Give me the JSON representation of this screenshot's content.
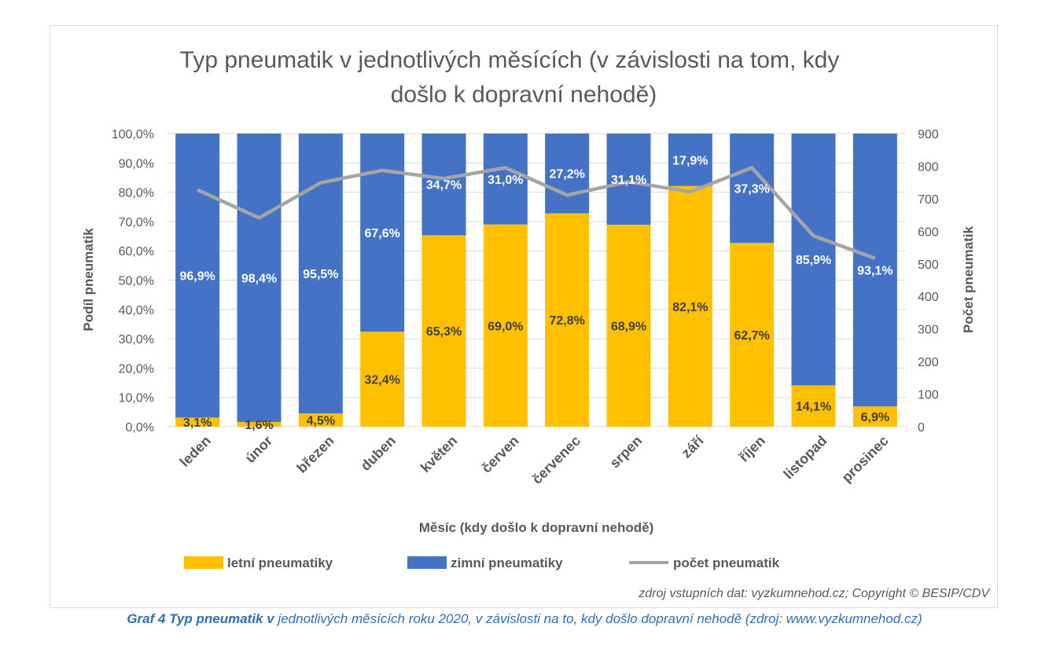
{
  "chart_data": {
    "type": "bar",
    "stacked": true,
    "title_line1": "Typ pneumatik v jednotlivých měsících (v závislosti na tom, kdy",
    "title_line2": "došlo k dopravní nehodě)",
    "xlabel": "Měsíc (kdy došlo k dopravní nehodě)",
    "ylabel": "Podíl pneumatik",
    "y2label": "Počet pneumatik",
    "ylim": [
      0,
      100
    ],
    "y2lim": [
      0,
      900
    ],
    "y_ticks": [
      "0,0%",
      "10,0%",
      "20,0%",
      "30,0%",
      "40,0%",
      "50,0%",
      "60,0%",
      "70,0%",
      "80,0%",
      "90,0%",
      "100,0%"
    ],
    "y2_ticks": [
      "0",
      "100",
      "200",
      "300",
      "400",
      "500",
      "600",
      "700",
      "800",
      "900"
    ],
    "categories": [
      "leden",
      "únor",
      "březen",
      "duben",
      "květen",
      "červen",
      "červenec",
      "srpen",
      "září",
      "říjen",
      "listopad",
      "prosinec"
    ],
    "series": [
      {
        "name": "letní pneumatiky",
        "color": "#FFC000",
        "label_color": "#404040",
        "values": [
          3.1,
          1.6,
          4.5,
          32.4,
          65.3,
          69.0,
          72.8,
          68.9,
          82.1,
          62.7,
          14.1,
          6.9
        ],
        "labels": [
          "3,1%",
          "1,6%",
          "4,5%",
          "32,4%",
          "65,3%",
          "69,0%",
          "72,8%",
          "68,9%",
          "82,1%",
          "62,7%",
          "14,1%",
          "6,9%"
        ]
      },
      {
        "name": "zimní pneumatiky",
        "color": "#4472C4",
        "label_color": "#ffffff",
        "values": [
          96.9,
          98.4,
          95.5,
          67.6,
          34.7,
          31.0,
          27.2,
          31.1,
          17.9,
          37.3,
          85.9,
          93.1
        ],
        "labels": [
          "96,9%",
          "98,4%",
          "95,5%",
          "67,6%",
          "34,7%",
          "31,0%",
          "27,2%",
          "31,1%",
          "17,9%",
          "37,3%",
          "85,9%",
          "93,1%"
        ]
      },
      {
        "name": "počet pneumatik",
        "type": "line",
        "axis": "right",
        "color": "#A5A5A5",
        "values": [
          727,
          641,
          749,
          787,
          762,
          795,
          711,
          752,
          721,
          795,
          586,
          517
        ]
      }
    ],
    "legend_position": "bottom",
    "source": "zdroj vstupních dat: vyzkumnehod.cz; Copyright © BESIP/CDV"
  },
  "caption": {
    "prefix": "Graf 4 Typ pneumatik v",
    "rest": " jednotlivých měsících roku 2020, v závislosti na to, kdy došlo dopravní nehodě (zdroj: www.vyzkumnehod.cz)"
  }
}
